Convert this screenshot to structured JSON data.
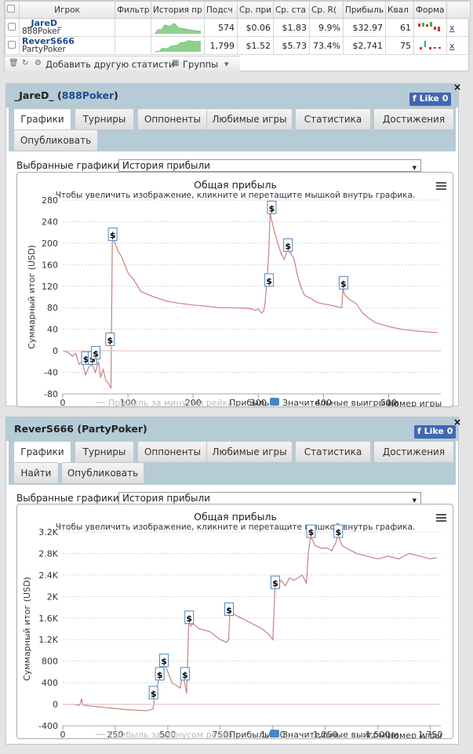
{
  "stats_table": {
    "columns": [
      "Игрок",
      "Фильтр",
      "История пр",
      "Подсч",
      "Ср. при",
      "Ср. ста",
      "Ср. R(",
      "Прибыль",
      "Квал",
      "Форма"
    ],
    "rows": [
      {
        "name": "_JareD_",
        "site": "888Poker",
        "hands": "574",
        "avg_profit": "$0.06",
        "avg_stake": "$1.83",
        "roi": "9.9%",
        "profit": "$32.97",
        "qual": "61",
        "remove": "x"
      },
      {
        "name": "ReverS666",
        "site": "PartyPoker",
        "hands": "1,799",
        "avg_profit": "$1.52",
        "avg_stake": "$5.73",
        "roi": "73.4%",
        "profit": "$2,741",
        "qual": "75",
        "remove": "x"
      }
    ],
    "footer": {
      "add_label": "Добавить другую статисти",
      "groups_label": "Группы"
    }
  },
  "panels": [
    {
      "name": "_JareD_",
      "site": "888Poker",
      "like_label": "Like 0",
      "tabs": [
        "Графики",
        "Турниры",
        "Оппоненты",
        "Любимые игры",
        "Статистика",
        "Достижения",
        "Опубликовать"
      ],
      "select_label": "Выбранные графики:",
      "select_value": "История прибыли",
      "chart_data": {
        "type": "line",
        "title": "Общая прибыль",
        "subtitle": "Чтобы увеличить изображение, кликните и перетащите мышкой внутрь графика.",
        "ylabel": "Суммарный итог (USD)",
        "xlabel": "Номер игры",
        "x_ticks": [
          "0",
          "100",
          "200",
          "300",
          "400",
          "500"
        ],
        "y_ticks": [
          "-80",
          "-40",
          "0",
          "40",
          "80",
          "120",
          "160",
          "200",
          "240",
          "280"
        ],
        "xlim": [
          0,
          580
        ],
        "ylim": [
          -80,
          280
        ],
        "grid": true,
        "legend": [
          "Прибыль за минусом рейка",
          "Прибыль",
          "Значительные выигрыши"
        ],
        "series": [
          {
            "name": "Прибыль",
            "color": "#c98080",
            "x": [
              0,
              8,
              15,
              20,
              25,
              30,
              35,
              40,
              45,
              50,
              55,
              58,
              62,
              66,
              70,
              72,
              74,
              76,
              80,
              85,
              90,
              95,
              100,
              110,
              120,
              140,
              160,
              180,
              200,
              220,
              240,
              260,
              280,
              290,
              295,
              300,
              305,
              308,
              310,
              313,
              316,
              318,
              320,
              322,
              325,
              330,
              335,
              340,
              345,
              350,
              355,
              360,
              365,
              370,
              375,
              380,
              390,
              400,
              410,
              420,
              428,
              430,
              432,
              440,
              450,
              460,
              470,
              480,
              500,
              520,
              540,
              560,
              575
            ],
            "y": [
              0,
              -3,
              -10,
              -5,
              -25,
              -20,
              -45,
              -30,
              -25,
              -40,
              -20,
              -50,
              -35,
              -55,
              -60,
              -65,
              -70,
              210,
              200,
              185,
              175,
              160,
              145,
              130,
              110,
              100,
              92,
              88,
              85,
              83,
              80,
              80,
              79,
              78,
              75,
              78,
              70,
              74,
              85,
              125,
              180,
              258,
              245,
              235,
              220,
              200,
              180,
              170,
              190,
              180,
              170,
              140,
              120,
              105,
              100,
              98,
              90,
              87,
              85,
              82,
              80,
              118,
              105,
              95,
              88,
              70,
              60,
              52,
              45,
              40,
              37,
              35,
              34
            ]
          },
          {
            "name": "Прибыль за минусом рейка",
            "color": "#e8c8c8",
            "x": [
              0,
              580
            ],
            "y": [
              0,
              0
            ]
          }
        ],
        "markers": [
          {
            "x": 35,
            "y": -15
          },
          {
            "x": 45,
            "y": -15
          },
          {
            "x": 50,
            "y": -5
          },
          {
            "x": 72,
            "y": 20
          },
          {
            "x": 76,
            "y": 215
          },
          {
            "x": 316,
            "y": 130
          },
          {
            "x": 320,
            "y": 265
          },
          {
            "x": 345,
            "y": 195
          },
          {
            "x": 430,
            "y": 125
          }
        ]
      }
    },
    {
      "name": "ReverS666",
      "site": "PartyPoker",
      "like_label": "Like 0",
      "tabs": [
        "Графики",
        "Турниры",
        "Оппоненты",
        "Любимые игры",
        "Статистика",
        "Достижения",
        "Найти",
        "Опубликовать"
      ],
      "select_label": "Выбранные графики:",
      "select_value": "История прибыли",
      "chart_data": {
        "type": "line",
        "title": "Общая прибыль",
        "subtitle": "Чтобы увеличить изображение, кликните и перетащите мышкой внутрь графика.",
        "ylabel": "Суммарный итог (USD)",
        "xlabel": "Номер игры",
        "x_ticks": [
          "0",
          "250",
          "500",
          "750",
          "1,000",
          "1,250",
          "1,500",
          "1,750"
        ],
        "y_ticks": [
          "-400",
          "0",
          "400",
          "800",
          "1.2K",
          "1.6K",
          "2K",
          "2.4K",
          "2.8K",
          "3.2K"
        ],
        "xlim": [
          0,
          1800
        ],
        "ylim": [
          -400,
          3200
        ],
        "grid": true,
        "legend": [
          "Прибыль за минусом рейка",
          "Прибыль",
          "Значительные выигрыши"
        ],
        "series": [
          {
            "name": "Прибыль",
            "color": "#c98080",
            "x": [
              0,
              50,
              80,
              90,
              95,
              100,
              150,
              200,
              250,
              300,
              350,
              400,
              420,
              430,
              440,
              460,
              470,
              480,
              490,
              500,
              520,
              540,
              560,
              570,
              580,
              590,
              600,
              610,
              620,
              650,
              700,
              750,
              780,
              790,
              795,
              800,
              850,
              900,
              950,
              980,
              1000,
              1010,
              1020,
              1040,
              1060,
              1080,
              1100,
              1140,
              1160,
              1170,
              1180,
              1190,
              1200,
              1230,
              1260,
              1280,
              1300,
              1310,
              1330,
              1350,
              1400,
              1450,
              1500,
              1550,
              1600,
              1650,
              1700,
              1750,
              1780
            ],
            "y": [
              0,
              0,
              -20,
              100,
              0,
              -20,
              -40,
              -60,
              -80,
              -100,
              -110,
              -120,
              -100,
              -90,
              200,
              500,
              450,
              800,
              700,
              600,
              400,
              350,
              300,
              600,
              400,
              200,
              1550,
              1450,
              1500,
              1400,
              1350,
              1200,
              1150,
              1200,
              1650,
              1700,
              1600,
              1500,
              1400,
              1300,
              1200,
              2150,
              2200,
              2300,
              2200,
              2350,
              2300,
              2400,
              2250,
              2850,
              3100,
              3050,
              2950,
              2900,
              2900,
              2850,
              3000,
              3150,
              2950,
              2900,
              2800,
              2750,
              2700,
              2750,
              2700,
              2800,
              2750,
              2700,
              2720
            ]
          },
          {
            "name": "Прибыль за минусом рейка",
            "color": "#e8c8c8",
            "x": [
              0,
              1800
            ],
            "y": [
              0,
              0
            ]
          }
        ],
        "markers": [
          {
            "x": 430,
            "y": 200
          },
          {
            "x": 460,
            "y": 550
          },
          {
            "x": 480,
            "y": 800
          },
          {
            "x": 580,
            "y": 550
          },
          {
            "x": 600,
            "y": 1600
          },
          {
            "x": 790,
            "y": 1750
          },
          {
            "x": 1010,
            "y": 2250
          },
          {
            "x": 1180,
            "y": 3200
          },
          {
            "x": 1310,
            "y": 3200
          }
        ]
      }
    }
  ]
}
